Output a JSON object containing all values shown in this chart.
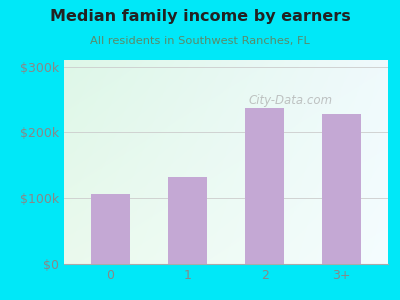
{
  "title": "Median family income by earners",
  "subtitle": "All residents in Southwest Ranches, FL",
  "categories": [
    "0",
    "1",
    "2",
    "3+"
  ],
  "values": [
    107000,
    132000,
    237000,
    228000
  ],
  "bar_color": "#c4a8d4",
  "background_color": "#00e8f8",
  "plot_bg_topleft": "#ddf5e8",
  "plot_bg_topright": "#e8f8fc",
  "plot_bg_bottomleft": "#e8f8e8",
  "plot_bg_bottomright": "#f0fafc",
  "title_color": "#222222",
  "subtitle_color": "#5a8a6a",
  "tick_label_color": "#888888",
  "ytick_labels": [
    "$0",
    "$100k",
    "$200k",
    "$300k"
  ],
  "ytick_values": [
    0,
    100000,
    200000,
    300000
  ],
  "ylim": [
    0,
    310000
  ],
  "watermark": "City-Data.com"
}
